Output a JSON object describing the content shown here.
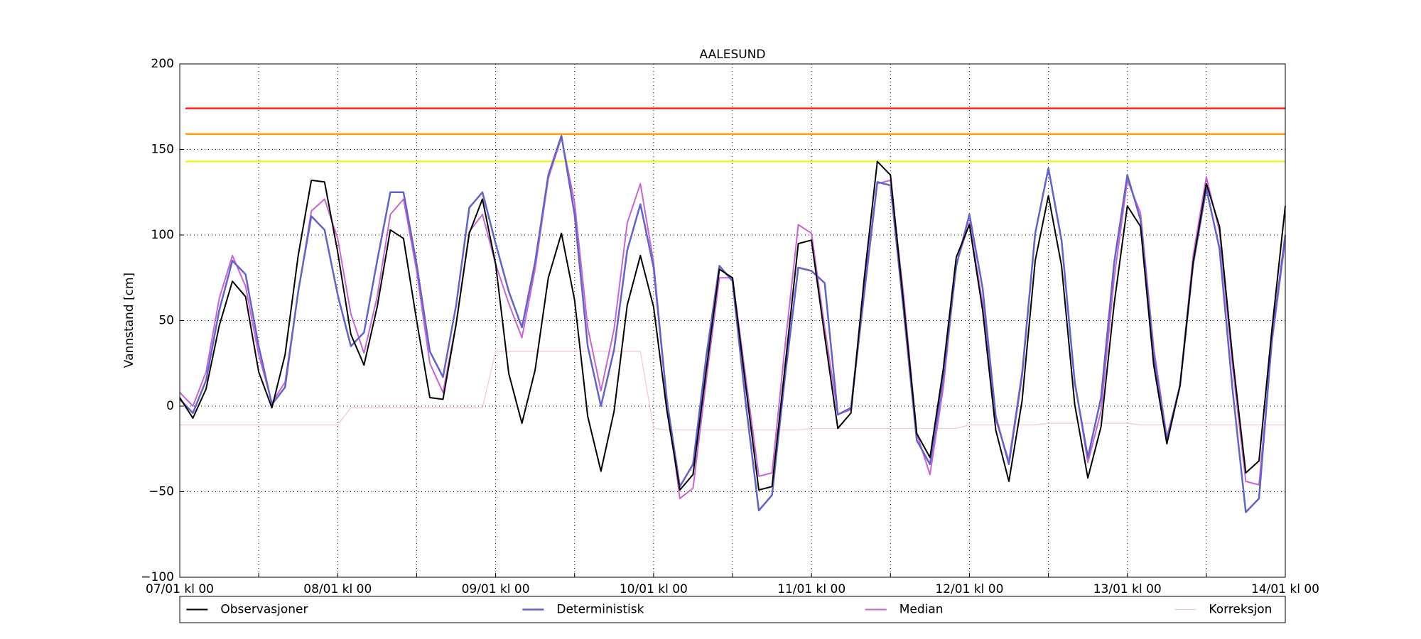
{
  "chart_data": {
    "type": "line",
    "title": "AALESUND",
    "ylabel": "Vannstand [cm]",
    "x": [
      0,
      2,
      4,
      6,
      8,
      10,
      12,
      14,
      16,
      18,
      20,
      22,
      24,
      26,
      28,
      30,
      32,
      34,
      36,
      38,
      40,
      42,
      44,
      46,
      48,
      50,
      52,
      54,
      56,
      58,
      60,
      62,
      64,
      66,
      68,
      70,
      72,
      74,
      76,
      78,
      80,
      82,
      84,
      86,
      88,
      90,
      92,
      94,
      96,
      98,
      100,
      102,
      104,
      106,
      108,
      110,
      112,
      114,
      116,
      118,
      120,
      122,
      124,
      126,
      128,
      130,
      132,
      134,
      136,
      138,
      140,
      142,
      144,
      146,
      148,
      150,
      152,
      154,
      156,
      158,
      160,
      162,
      164,
      166,
      168
    ],
    "series": [
      {
        "name": "Observasjoner",
        "color": "#000000",
        "width": 2,
        "values": [
          5,
          -7,
          10,
          47,
          73,
          64,
          20,
          -1,
          30,
          88,
          132,
          131,
          90,
          42,
          24,
          58,
          103,
          98,
          50,
          5,
          4,
          48,
          101,
          121,
          83,
          19,
          -10,
          21,
          75,
          101,
          62,
          -6,
          -38,
          -3,
          59,
          88,
          58,
          -2,
          -49,
          -40,
          21,
          80,
          75,
          12,
          -49,
          -47,
          24,
          95,
          97,
          41,
          -13,
          -4,
          74,
          143,
          135,
          60,
          -16,
          -30,
          21,
          87,
          106,
          56,
          -14,
          -44,
          3,
          85,
          123,
          82,
          1,
          -42,
          -12,
          60,
          117,
          105,
          24,
          -22,
          12,
          84,
          130,
          105,
          28,
          -39,
          -32,
          46,
          117
        ]
      },
      {
        "name": "Deterministisk",
        "color": "#6262cf",
        "width": 2.5,
        "values": [
          4,
          -4,
          15,
          56,
          85,
          77,
          35,
          1,
          11,
          67,
          111,
          103,
          65,
          35,
          43,
          85,
          125,
          125,
          83,
          32,
          17,
          59,
          116,
          125,
          95,
          67,
          46,
          84,
          135,
          158,
          112,
          35,
          0,
          33,
          91,
          118,
          81,
          4,
          -47,
          -34,
          29,
          82,
          73,
          2,
          -61,
          -52,
          18,
          81,
          79,
          72,
          -5,
          -1,
          67,
          131,
          129,
          56,
          -20,
          -34,
          16,
          82,
          112,
          69,
          -6,
          -34,
          18,
          101,
          139,
          97,
          14,
          -30,
          5,
          84,
          135,
          109,
          30,
          -20,
          12,
          83,
          127,
          92,
          9,
          -62,
          -54,
          41,
          100
        ]
      },
      {
        "name": "Median",
        "color": "#c865d2",
        "width": 2,
        "values": [
          8,
          0,
          20,
          63,
          88,
          70,
          30,
          2,
          14,
          66,
          114,
          121,
          98,
          54,
          31,
          64,
          112,
          121,
          79,
          25,
          8,
          48,
          102,
          112,
          83,
          60,
          40,
          80,
          133,
          157,
          119,
          46,
          9,
          45,
          107,
          130,
          84,
          5,
          -54,
          -48,
          15,
          75,
          75,
          17,
          -41,
          -39,
          36,
          106,
          101,
          46,
          -5,
          -2,
          64,
          130,
          132,
          65,
          -16,
          -40,
          10,
          83,
          107,
          60,
          -8,
          -32,
          20,
          101,
          139,
          96,
          15,
          -33,
          -3,
          75,
          132,
          113,
          34,
          -18,
          12,
          88,
          134,
          102,
          23,
          -44,
          -46,
          38,
          97
        ]
      },
      {
        "name": "Korreksjon",
        "color": "#f5c6d0",
        "width": 1.2,
        "values": [
          -11,
          -11,
          -11,
          -11,
          -11,
          -11,
          -11,
          -11,
          -11,
          -11,
          -11,
          -11,
          -11,
          -1,
          -1,
          -1,
          -1,
          -1,
          -1,
          -1,
          -1,
          -1,
          -1,
          -1,
          32,
          32,
          32,
          32,
          32,
          32,
          32,
          32,
          32,
          32,
          32,
          32,
          -13,
          -14,
          -14,
          -14,
          -14,
          -14,
          -14,
          -14,
          -14,
          -14,
          -14,
          -14,
          -13,
          -13,
          -13,
          -13,
          -13,
          -13,
          -13,
          -13,
          -13,
          -13,
          -13,
          -13,
          -11,
          -11,
          -11,
          -11,
          -11,
          -11,
          -10,
          -10,
          -10,
          -10,
          -10,
          -10,
          -10,
          -11,
          -11,
          -11,
          -11,
          -11,
          -11,
          -11,
          -11,
          -11,
          -11,
          -11,
          -11
        ]
      }
    ],
    "hlines": [
      {
        "value": 174,
        "color": "#ff2020"
      },
      {
        "value": 159,
        "color": "#ffa500"
      },
      {
        "value": 143,
        "color": "#f5f520"
      }
    ],
    "xlim": [
      0,
      168
    ],
    "xticks": [
      {
        "value": 0,
        "label": "07/01 kl 00"
      },
      {
        "value": 24,
        "label": "08/01 kl 00"
      },
      {
        "value": 48,
        "label": "09/01 kl 00"
      },
      {
        "value": 72,
        "label": "10/01 kl 00"
      },
      {
        "value": 96,
        "label": "11/01 kl 00"
      },
      {
        "value": 120,
        "label": "12/01 kl 00"
      },
      {
        "value": 144,
        "label": "13/01 kl 00"
      },
      {
        "value": 168,
        "label": "14/01 kl 00"
      }
    ],
    "xminor": [
      12,
      36,
      60,
      84,
      108,
      132,
      156
    ],
    "ylim": [
      -100,
      200
    ],
    "yticks": [
      {
        "value": -100,
        "label": "−100"
      },
      {
        "value": -50,
        "label": "−50"
      },
      0,
      50,
      100,
      150,
      200
    ],
    "grid": true,
    "legend": "below"
  }
}
